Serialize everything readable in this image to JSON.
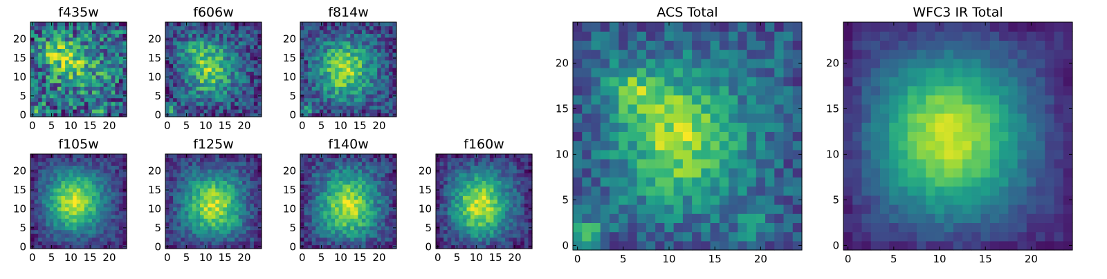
{
  "chart_data": [
    {
      "type": "heatmap",
      "title": "f435w",
      "x_ticks": [
        "0",
        "5",
        "10",
        "15",
        "20"
      ],
      "y_ticks": [
        "0",
        "5",
        "10",
        "15",
        "20"
      ],
      "xlim": [
        -0.5,
        24.5
      ],
      "ylim": [
        -0.5,
        24.5
      ],
      "colormap": "viridis",
      "shape": [
        25,
        25
      ],
      "blobs": [
        {
          "x": 7,
          "y": 16,
          "sx": 3.5,
          "sy": 2.5,
          "amp": 0.35
        },
        {
          "x": 12,
          "y": 13,
          "sx": 4.5,
          "sy": 4,
          "amp": 0.25
        },
        {
          "x": 1,
          "y": 1,
          "sx": 1.5,
          "sy": 1.2,
          "amp": 0.45
        },
        {
          "x": 17,
          "y": 1,
          "sx": 1.2,
          "sy": 1.2,
          "amp": 0.25
        }
      ],
      "base": 0.4,
      "noise": 0.32,
      "seed": 11
    },
    {
      "type": "heatmap",
      "title": "f606w",
      "x_ticks": [
        "0",
        "5",
        "10",
        "15",
        "20"
      ],
      "y_ticks": [
        "0",
        "5",
        "10",
        "15",
        "20"
      ],
      "xlim": [
        -0.5,
        24.5
      ],
      "ylim": [
        -0.5,
        24.5
      ],
      "colormap": "viridis",
      "shape": [
        25,
        25
      ],
      "blobs": [
        {
          "x": 11,
          "y": 12,
          "sx": 4,
          "sy": 4.5,
          "amp": 0.5
        },
        {
          "x": 7,
          "y": 17,
          "sx": 2.5,
          "sy": 2,
          "amp": 0.2
        },
        {
          "x": 1,
          "y": 1,
          "sx": 1.2,
          "sy": 1.2,
          "amp": 0.4
        }
      ],
      "base": 0.3,
      "noise": 0.22,
      "seed": 23
    },
    {
      "type": "heatmap",
      "title": "f814w",
      "x_ticks": [
        "0",
        "5",
        "10",
        "15",
        "20"
      ],
      "y_ticks": [
        "0",
        "5",
        "10",
        "15",
        "20"
      ],
      "xlim": [
        -0.5,
        24.5
      ],
      "ylim": [
        -0.5,
        24.5
      ],
      "colormap": "viridis",
      "shape": [
        25,
        25
      ],
      "blobs": [
        {
          "x": 11,
          "y": 12,
          "sx": 4.5,
          "sy": 5,
          "amp": 0.55
        },
        {
          "x": 1,
          "y": 1,
          "sx": 1.2,
          "sy": 1.2,
          "amp": 0.35
        }
      ],
      "base": 0.3,
      "noise": 0.2,
      "seed": 37
    },
    {
      "type": "heatmap",
      "title": "f105w",
      "x_ticks": [
        "0",
        "5",
        "10",
        "15",
        "20"
      ],
      "y_ticks": [
        "0",
        "5",
        "10",
        "15",
        "20"
      ],
      "xlim": [
        -0.5,
        24.5
      ],
      "ylim": [
        -0.5,
        24.5
      ],
      "colormap": "viridis",
      "shape": [
        25,
        25
      ],
      "blobs": [
        {
          "x": 11,
          "y": 12,
          "sx": 5,
          "sy": 5.5,
          "amp": 0.7
        }
      ],
      "base": 0.22,
      "noise": 0.12,
      "seed": 41
    },
    {
      "type": "heatmap",
      "title": "f125w",
      "x_ticks": [
        "0",
        "5",
        "10",
        "15",
        "20"
      ],
      "y_ticks": [
        "0",
        "5",
        "10",
        "15",
        "20"
      ],
      "xlim": [
        -0.5,
        24.5
      ],
      "ylim": [
        -0.5,
        24.5
      ],
      "colormap": "viridis",
      "shape": [
        25,
        25
      ],
      "blobs": [
        {
          "x": 12,
          "y": 11,
          "sx": 5,
          "sy": 5.5,
          "amp": 0.65
        }
      ],
      "base": 0.25,
      "noise": 0.14,
      "seed": 53
    },
    {
      "type": "heatmap",
      "title": "f140w",
      "x_ticks": [
        "0",
        "5",
        "10",
        "15",
        "20"
      ],
      "y_ticks": [
        "0",
        "5",
        "10",
        "15",
        "20"
      ],
      "xlim": [
        -0.5,
        24.5
      ],
      "ylim": [
        -0.5,
        24.5
      ],
      "colormap": "viridis",
      "shape": [
        25,
        25
      ],
      "blobs": [
        {
          "x": 12,
          "y": 11,
          "sx": 5,
          "sy": 6,
          "amp": 0.65
        }
      ],
      "base": 0.25,
      "noise": 0.15,
      "seed": 67
    },
    {
      "type": "heatmap",
      "title": "f160w",
      "x_ticks": [
        "0",
        "5",
        "10",
        "15",
        "20"
      ],
      "y_ticks": [
        "0",
        "5",
        "10",
        "15",
        "20"
      ],
      "xlim": [
        -0.5,
        24.5
      ],
      "ylim": [
        -0.5,
        24.5
      ],
      "colormap": "viridis",
      "shape": [
        25,
        25
      ],
      "blobs": [
        {
          "x": 11,
          "y": 11,
          "sx": 5,
          "sy": 6,
          "amp": 0.7
        }
      ],
      "base": 0.22,
      "noise": 0.14,
      "seed": 79
    },
    {
      "type": "heatmap",
      "title": "ACS Total",
      "x_ticks": [
        "0",
        "5",
        "10",
        "15",
        "20"
      ],
      "y_ticks": [
        "0",
        "5",
        "10",
        "15",
        "20"
      ],
      "xlim": [
        -0.5,
        24.5
      ],
      "ylim": [
        -0.5,
        24.5
      ],
      "colormap": "viridis",
      "shape": [
        25,
        25
      ],
      "blobs": [
        {
          "x": 11,
          "y": 12,
          "sx": 4,
          "sy": 4.5,
          "amp": 0.5
        },
        {
          "x": 6,
          "y": 17,
          "sx": 1.8,
          "sy": 1.5,
          "amp": 0.35
        },
        {
          "x": 1,
          "y": 1,
          "sx": 1.2,
          "sy": 1.2,
          "amp": 0.55
        },
        {
          "x": 19,
          "y": 2,
          "sx": 1,
          "sy": 1,
          "amp": 0.35
        }
      ],
      "base": 0.38,
      "noise": 0.16,
      "seed": 97
    },
    {
      "type": "heatmap",
      "title": "WFC3 IR Total",
      "x_ticks": [
        "0",
        "5",
        "10",
        "15",
        "20"
      ],
      "y_ticks": [
        "0",
        "5",
        "10",
        "15",
        "20"
      ],
      "xlim": [
        -0.5,
        24.5
      ],
      "ylim": [
        -0.5,
        24.5
      ],
      "colormap": "viridis",
      "shape": [
        25,
        25
      ],
      "blobs": [
        {
          "x": 11,
          "y": 12,
          "sx": 5.5,
          "sy": 6,
          "amp": 0.72
        }
      ],
      "base": 0.2,
      "noise": 0.06,
      "seed": 113
    }
  ]
}
